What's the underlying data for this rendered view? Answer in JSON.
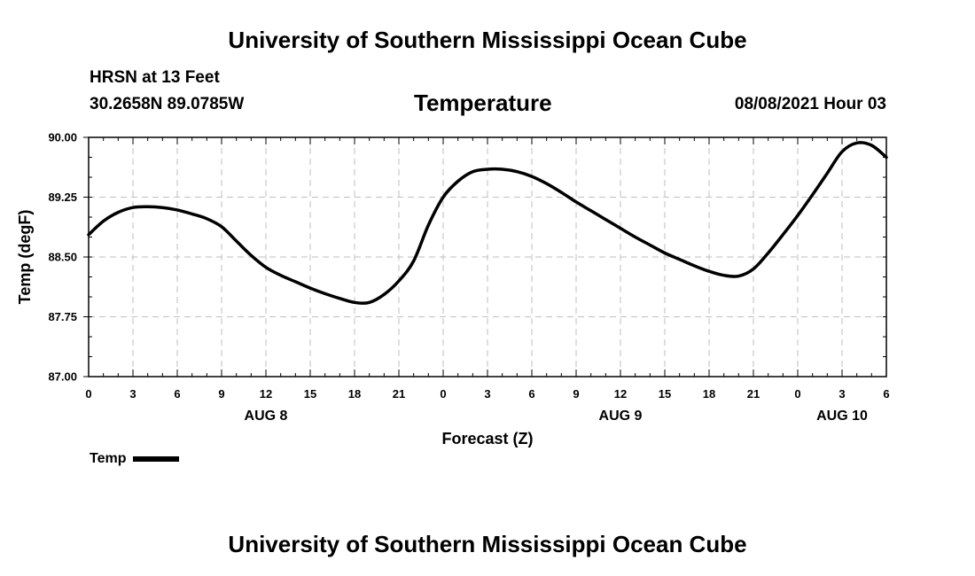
{
  "header": {
    "title": "University of Southern Mississippi Ocean Cube",
    "station": "HRSN at 13 Feet",
    "coords": "30.2658N  89.0785W",
    "chart_title": "Temperature",
    "datetime": "08/08/2021 Hour 03"
  },
  "footer": {
    "title": "University of Southern Mississippi Ocean Cube"
  },
  "legend": {
    "label": "Temp"
  },
  "colors": {
    "line": "#000000",
    "grid": "#bfbfbf"
  },
  "chart_data": {
    "type": "line",
    "title": "Temperature",
    "xlabel": "Forecast (Z)",
    "ylabel": "Temp (degF)",
    "xlim": [
      0,
      54
    ],
    "ylim": [
      87.0,
      90.0
    ],
    "y_ticks": [
      "87.00",
      "87.75",
      "88.50",
      "89.25",
      "90.00"
    ],
    "x_ticks": [
      {
        "hour": 0,
        "label": "0"
      },
      {
        "hour": 3,
        "label": "3"
      },
      {
        "hour": 6,
        "label": "6"
      },
      {
        "hour": 9,
        "label": "9"
      },
      {
        "hour": 12,
        "label": "12"
      },
      {
        "hour": 15,
        "label": "15"
      },
      {
        "hour": 18,
        "label": "18"
      },
      {
        "hour": 21,
        "label": "21"
      },
      {
        "hour": 24,
        "label": "0"
      },
      {
        "hour": 27,
        "label": "3"
      },
      {
        "hour": 30,
        "label": "6"
      },
      {
        "hour": 33,
        "label": "9"
      },
      {
        "hour": 36,
        "label": "12"
      },
      {
        "hour": 39,
        "label": "15"
      },
      {
        "hour": 42,
        "label": "18"
      },
      {
        "hour": 45,
        "label": "21"
      },
      {
        "hour": 48,
        "label": "0"
      },
      {
        "hour": 51,
        "label": "3"
      },
      {
        "hour": 54,
        "label": "6"
      }
    ],
    "date_labels": [
      {
        "hour": 12,
        "label": "AUG 8"
      },
      {
        "hour": 36,
        "label": "AUG 9"
      },
      {
        "hour": 51,
        "label": "AUG 10"
      }
    ],
    "grid": true,
    "legend_position": "bottom-left",
    "series": [
      {
        "name": "Temp",
        "x": [
          0,
          1,
          2,
          3,
          4,
          5,
          6,
          7,
          8,
          9,
          10,
          11,
          12,
          13,
          14,
          15,
          16,
          17,
          18,
          19,
          20,
          21,
          22,
          23,
          24,
          25,
          26,
          27,
          28,
          29,
          30,
          31,
          32,
          33,
          34,
          35,
          36,
          37,
          38,
          39,
          40,
          41,
          42,
          43,
          44,
          45,
          46,
          47,
          48,
          49,
          50,
          51,
          52,
          53,
          54
        ],
        "values": [
          88.78,
          88.95,
          89.06,
          89.12,
          89.13,
          89.12,
          89.09,
          89.04,
          88.98,
          88.88,
          88.7,
          88.52,
          88.37,
          88.27,
          88.19,
          88.11,
          88.04,
          87.98,
          87.93,
          87.93,
          88.03,
          88.2,
          88.45,
          88.9,
          89.25,
          89.45,
          89.57,
          89.6,
          89.6,
          89.57,
          89.51,
          89.42,
          89.31,
          89.19,
          89.08,
          88.97,
          88.86,
          88.75,
          88.65,
          88.55,
          88.47,
          88.39,
          88.32,
          88.27,
          88.26,
          88.35,
          88.55,
          88.78,
          89.02,
          89.28,
          89.55,
          89.82,
          89.93,
          89.9,
          89.75
        ]
      }
    ]
  }
}
